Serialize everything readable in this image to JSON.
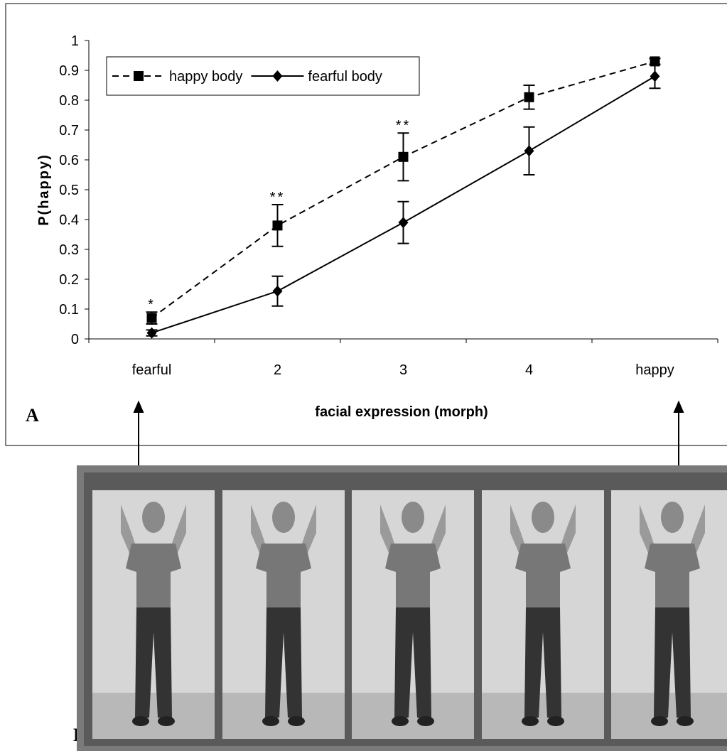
{
  "chart_data": {
    "type": "line",
    "ylabel": "P(happy)",
    "xlabel": "facial expression (morph)",
    "categories": [
      "fearful",
      "2",
      "3",
      "4",
      "happy"
    ],
    "series": [
      {
        "name": "happy body",
        "color": "#000000",
        "dash": true,
        "marker": "square",
        "values": [
          0.07,
          0.38,
          0.61,
          0.81,
          0.93
        ],
        "errors": [
          0.02,
          0.07,
          0.08,
          0.04,
          0.01
        ]
      },
      {
        "name": "fearful body",
        "color": "#000000",
        "dash": false,
        "marker": "diamond",
        "values": [
          0.02,
          0.16,
          0.39,
          0.63,
          0.88
        ],
        "errors": [
          0.01,
          0.05,
          0.07,
          0.08,
          0.04
        ]
      }
    ],
    "significance": [
      "*",
      "**",
      "**",
      null,
      null
    ],
    "ylim": [
      0,
      1
    ],
    "yticks": [
      0,
      0.1,
      0.2,
      0.3,
      0.4,
      0.5,
      0.6,
      0.7,
      0.8,
      0.9,
      1
    ],
    "legend": "top-left"
  },
  "panels": {
    "a": "A",
    "b": "B"
  }
}
